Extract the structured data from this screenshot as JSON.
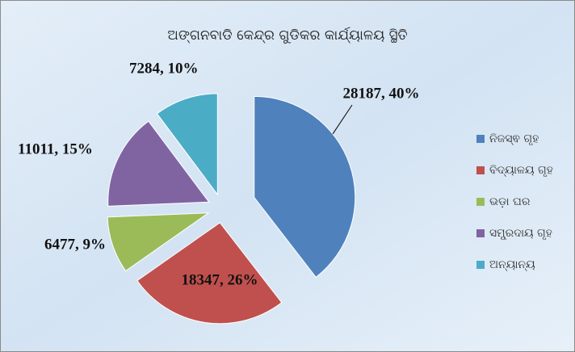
{
  "chart_data": {
    "type": "pie",
    "title": "ଅଙ୍ଗନବାଡି କେନ୍ଦ୍ର ଗୁଡିକର କାର୍ଯ୍ୟାଳୟ ସ୍ଥିତି",
    "categories": [
      "ନିଜସ୍ଵ ଗୃହ",
      "ବିଦ୍ୟାଳୟ ଗୃହ",
      "ଭଡ଼ା ଘର",
      "ସମ୍ପ୍ରଦାୟ ଗୃହ",
      "ଅନ୍ୟାନ୍ୟ"
    ],
    "values": [
      28187,
      18347,
      6477,
      11011,
      7284
    ],
    "value_labels": [
      "28187, 40%",
      "18347, 26%",
      "6477, 9%",
      "11011, 15%",
      "7284, 10%"
    ],
    "colors": [
      "#4f81bd",
      "#c0504d",
      "#9bbb59",
      "#8064a2",
      "#4bacc6"
    ],
    "legend": "right"
  }
}
